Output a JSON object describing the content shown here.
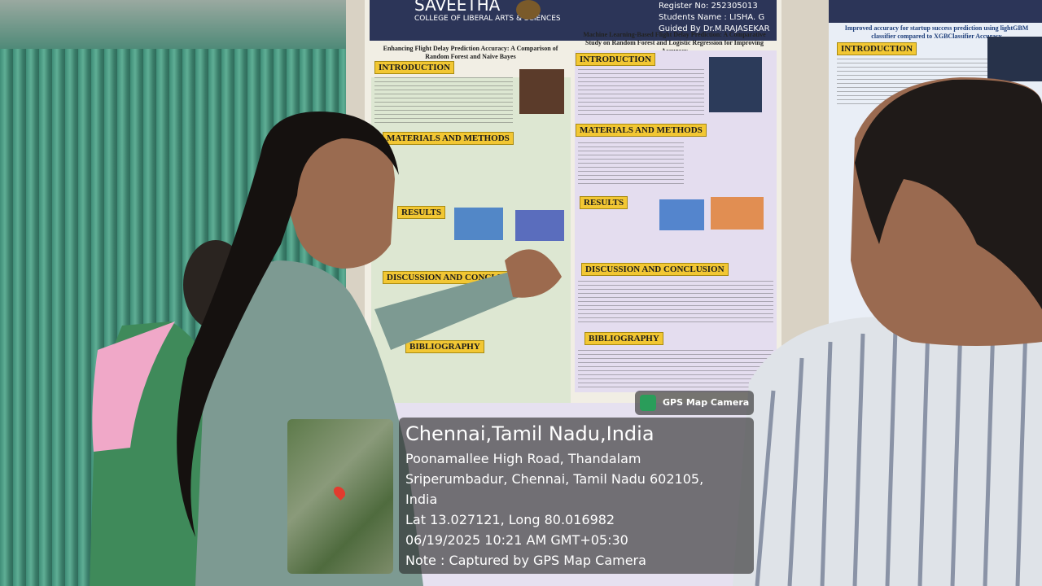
{
  "posters": [
    {
      "institution": "SAVEETHA",
      "college": "COLLEGE OF LIBERAL ARTS & SCIENCES",
      "register_no": "Register No: 252305013",
      "student": "Students Name : LISHA. G",
      "guide": "Guided By Dr.M.RAJASEKAR",
      "title_left": "Enhancing Flight Delay Prediction Accuracy: A Comparison of Random Forest and Naive Bayes",
      "title_right": "Machine Learning-Based Flight Delay Prediction: A Comparative Study on Random Forest and Logistic Regression for Improving Accuracy",
      "sections_left": [
        "INTRODUCTION",
        "MATERIALS AND METHODS",
        "RESULTS",
        "DISCUSSION AND CONCLUSION",
        "BIBLIOGRAPHY"
      ],
      "sections_right": [
        "INTRODUCTION",
        "MATERIALS AND METHODS",
        "RESULTS",
        "DISCUSSION AND CONCLUSION",
        "BIBLIOGRAPHY"
      ]
    },
    {
      "title": "Improved accuracy for startup success prediction using lightGBM classifier compared to XGBClassifier Accuracy",
      "sections": [
        "INTRODUCTION"
      ]
    }
  ],
  "overlay": {
    "app": "GPS Map Camera",
    "place": "Chennai,Tamil Nadu,India",
    "address_lines": [
      "Poonamallee High Road, Thandalam",
      "Sriperumbadur, Chennai, Tamil Nadu 602105,",
      "India"
    ],
    "coordinates": "Lat 13.027121, Long 80.016982",
    "datetime": "06/19/2025 10:21 AM GMT+05:30",
    "note": "Note : Captured by GPS Map Camera"
  }
}
